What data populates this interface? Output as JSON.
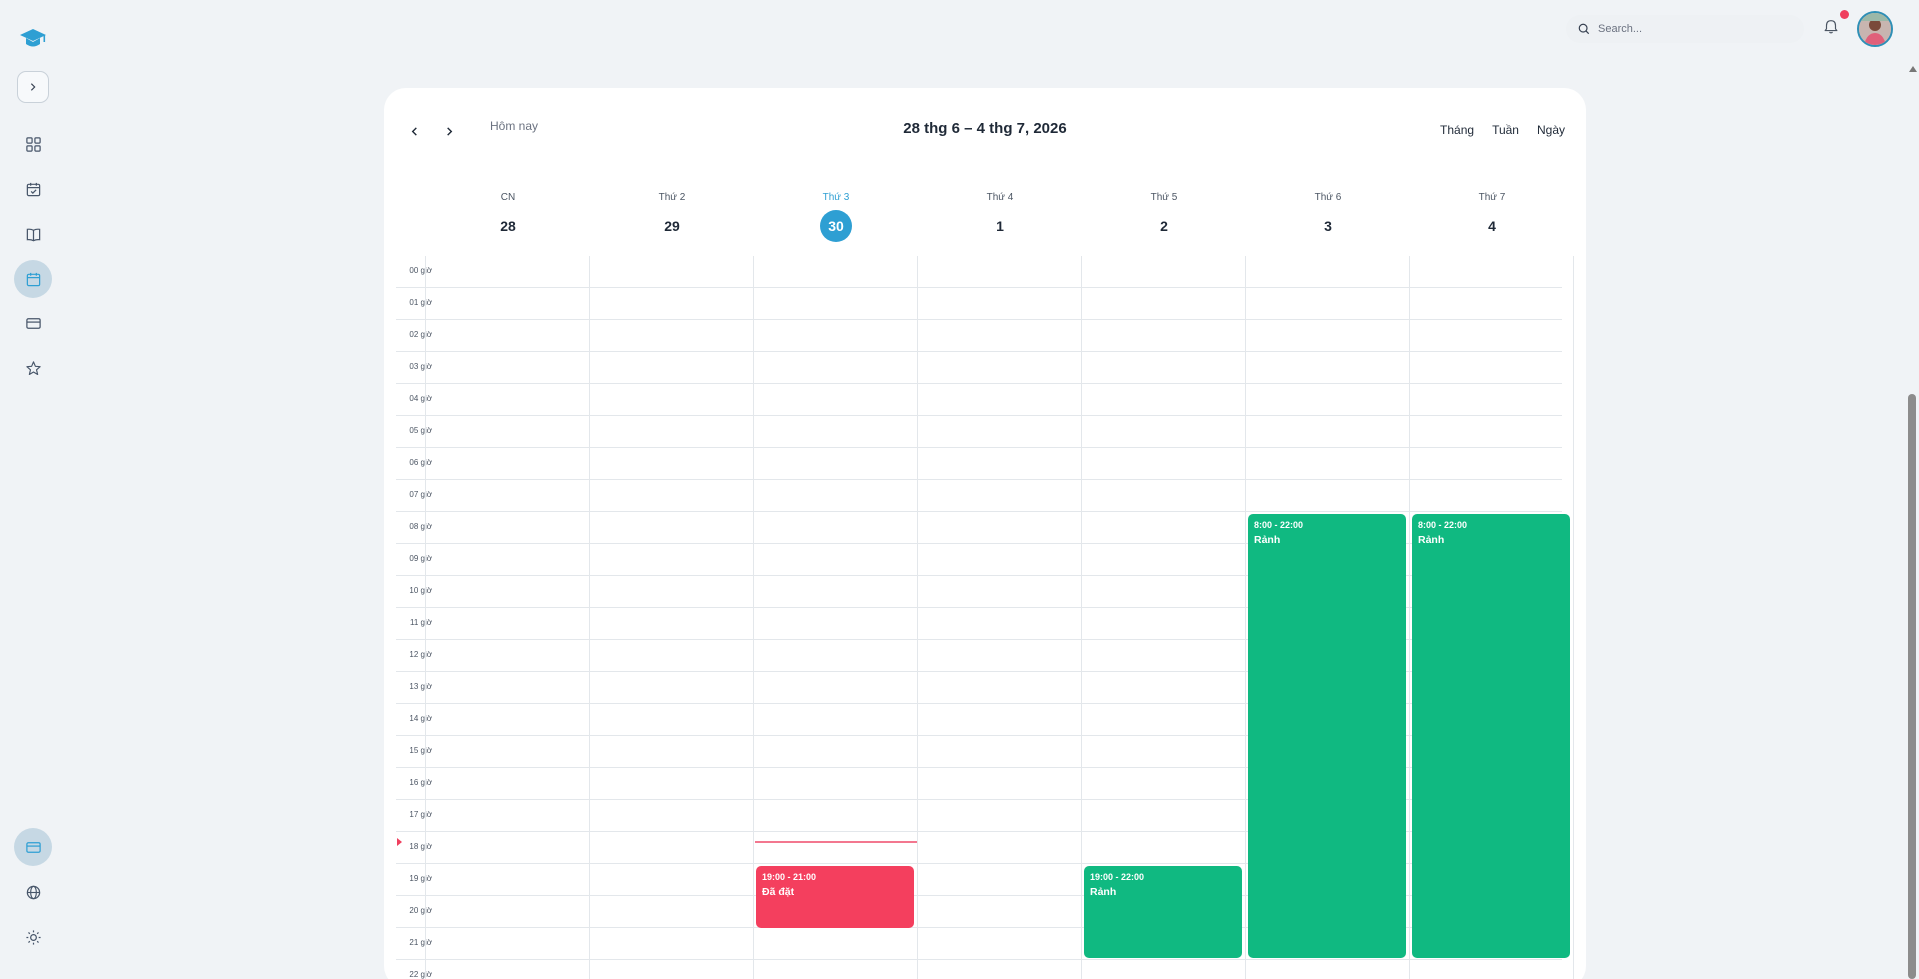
{
  "search": {
    "placeholder": "Search..."
  },
  "colors": {
    "accent": "#2e9fd3",
    "available": "#10b981",
    "booked": "#f43f5e",
    "now": "#ef3f5e"
  },
  "sidebar": {
    "items": [
      {
        "name": "dashboard",
        "icon": "grid-icon"
      },
      {
        "name": "tasks",
        "icon": "calendar-check-icon"
      },
      {
        "name": "courses",
        "icon": "book-icon"
      },
      {
        "name": "schedule",
        "icon": "calendar-icon",
        "active": true
      },
      {
        "name": "payments",
        "icon": "card-icon"
      },
      {
        "name": "favorites",
        "icon": "star-icon"
      }
    ],
    "bottom": [
      {
        "name": "billing",
        "icon": "card-icon"
      },
      {
        "name": "language",
        "icon": "globe-icon"
      },
      {
        "name": "theme",
        "icon": "sun-icon"
      }
    ]
  },
  "calendar": {
    "today_label": "Hôm nay",
    "range_title": "28 thg 6 – 4 thg 7, 2026",
    "views": [
      "Tháng",
      "Tuần",
      "Ngày"
    ],
    "days": [
      {
        "name": "CN",
        "num": "28",
        "today": false
      },
      {
        "name": "Thứ 2",
        "num": "29",
        "today": false
      },
      {
        "name": "Thứ 3",
        "num": "30",
        "today": true
      },
      {
        "name": "Thứ 4",
        "num": "1",
        "today": false
      },
      {
        "name": "Thứ 5",
        "num": "2",
        "today": false
      },
      {
        "name": "Thứ 6",
        "num": "3",
        "today": false
      },
      {
        "name": "Thứ 7",
        "num": "4",
        "today": false
      }
    ],
    "hours": [
      "00 giờ",
      "01 giờ",
      "02 giờ",
      "03 giờ",
      "04 giờ",
      "05 giờ",
      "06 giờ",
      "07 giờ",
      "08 giờ",
      "09 giờ",
      "10 giờ",
      "11 giờ",
      "12 giờ",
      "13 giờ",
      "14 giờ",
      "15 giờ",
      "16 giờ",
      "17 giờ",
      "18 giờ",
      "19 giờ",
      "20 giờ",
      "21 giờ",
      "22 giờ"
    ],
    "events": [
      {
        "day": 2,
        "start": 19,
        "end": 21,
        "time": "19:00 - 21:00",
        "label": "Đã đặt",
        "status": "booked"
      },
      {
        "day": 4,
        "start": 19,
        "end": 22,
        "time": "19:00 - 22:00",
        "label": "Rảnh",
        "status": "available"
      },
      {
        "day": 5,
        "start": 8,
        "end": 22,
        "time": "8:00 - 22:00",
        "label": "Rảnh",
        "status": "available"
      },
      {
        "day": 6,
        "start": 8,
        "end": 22,
        "time": "8:00 - 22:00",
        "label": "Rảnh",
        "status": "available"
      }
    ],
    "now_hour": 18.25
  }
}
